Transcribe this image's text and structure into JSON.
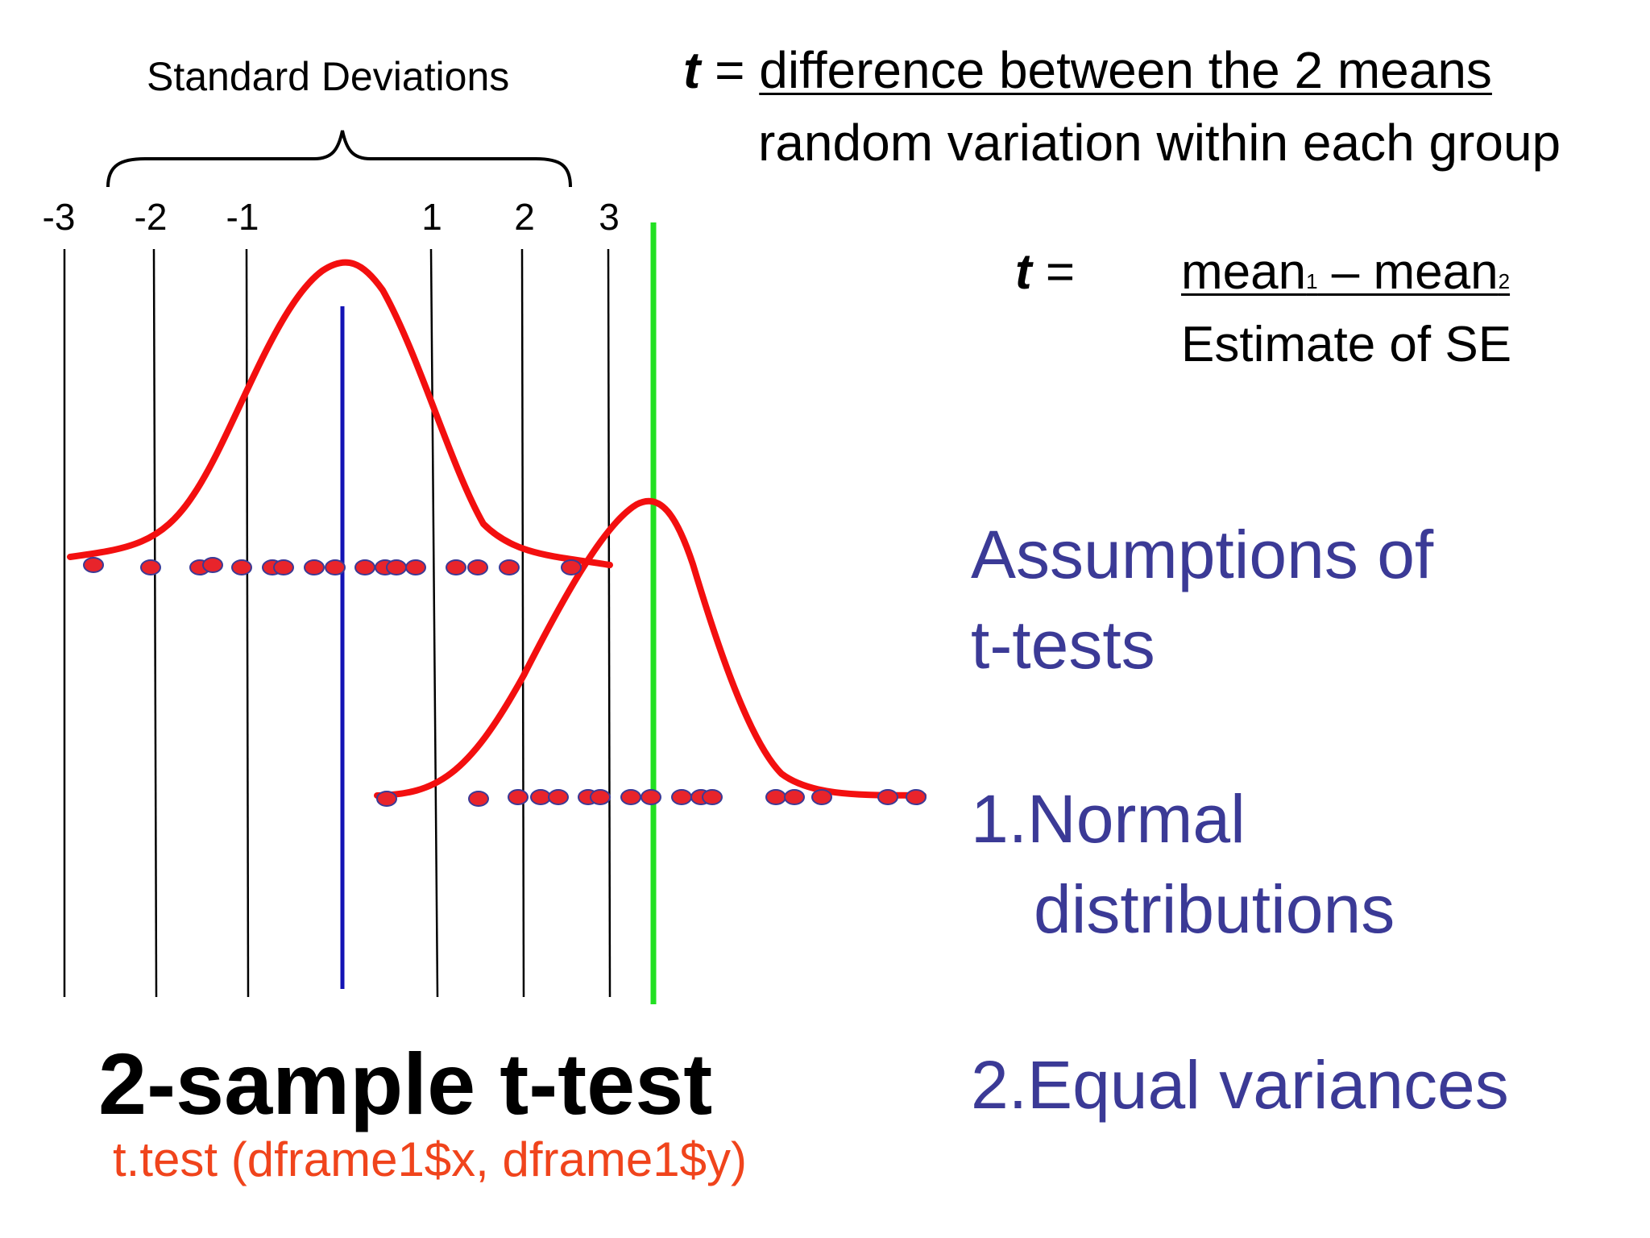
{
  "sd_caption": "Standard Deviations",
  "sd_ticks": [
    "-3",
    "-2",
    "-1",
    "1",
    "2",
    "3"
  ],
  "formula1": {
    "t": "t",
    "eq": " = ",
    "numerator": "difference between the 2 means",
    "denominator": "random variation within each group"
  },
  "formula2": {
    "t": "t",
    "eq": " =",
    "num_mean1": "mean",
    "sub1": "1",
    "num_minus": " – mean",
    "sub2": "2",
    "denominator": "Estimate of SE"
  },
  "assumptions": {
    "title_line1": "Assumptions of",
    "title_line2": "t-tests",
    "item1_line1": "1.Normal",
    "item1_line2": "distributions",
    "item2": "2.Equal variances"
  },
  "main_title": "2-sample t-test",
  "r_code": "t.test (dframe1$x, dframe1$y)",
  "colors": {
    "curve": "#f30f0f",
    "dot_fill": "#e8242b",
    "dot_stroke": "#3b3a96",
    "mean1_line": "#1313b5",
    "mean2_line": "#22e022",
    "text_blue": "#3b3a96",
    "code": "#f0441c"
  }
}
